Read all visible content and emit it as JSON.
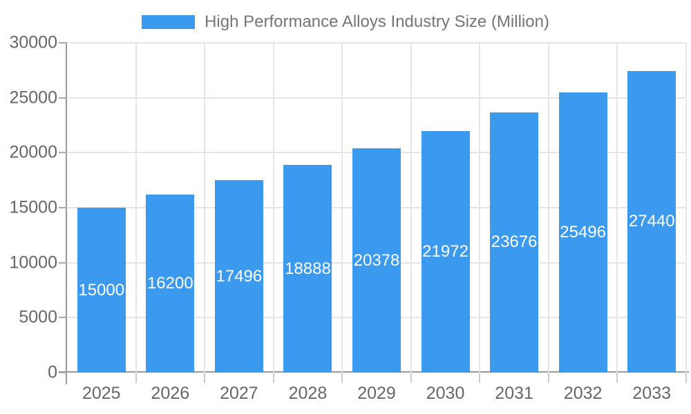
{
  "chart_data": {
    "type": "bar",
    "title": "",
    "legend": {
      "label": "High Performance Alloys Industry Size (Million)",
      "position": "top-center"
    },
    "categories": [
      "2025",
      "2026",
      "2027",
      "2028",
      "2029",
      "2030",
      "2031",
      "2032",
      "2033"
    ],
    "series": [
      {
        "name": "High Performance Alloys Industry Size (Million)",
        "values": [
          15000,
          16200,
          17496,
          18888,
          20378,
          21972,
          23676,
          25496,
          27440
        ]
      }
    ],
    "value_labels": {
      "position": "inside-center",
      "color": "#ffffff"
    },
    "xlabel": "",
    "ylabel": "",
    "ylim": [
      0,
      30000
    ],
    "ytick_step": 5000,
    "yticks": [
      0,
      5000,
      10000,
      15000,
      20000,
      25000,
      30000
    ],
    "grid": true,
    "gridlines": {
      "horizontal": true,
      "vertical": "category-boundaries"
    }
  },
  "colors": {
    "bar": "#3b99ee",
    "grid": "#e5e5e5",
    "axis": "#999999",
    "x_tick": "#cccccc",
    "tick_text": "#666666",
    "legend_text": "#757575",
    "bar_label_text": "#ffffff",
    "background": "#ffffff"
  }
}
